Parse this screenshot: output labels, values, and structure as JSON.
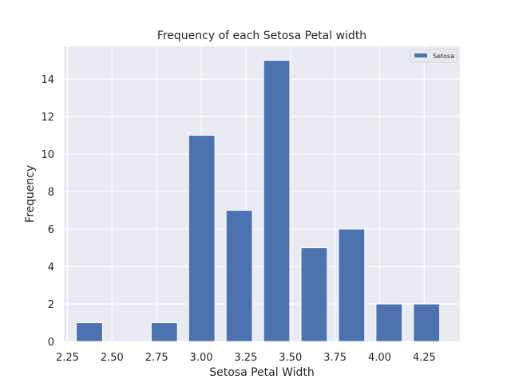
{
  "chart_data": {
    "type": "bar",
    "title": "Frequency of each Setosa Petal width",
    "xlabel": "Setosa Petal Width",
    "ylabel": "Frequency",
    "legend": {
      "entries": [
        "Setosa"
      ],
      "placement": "top-right"
    },
    "grid": true,
    "xlim": [
      2.23,
      4.45
    ],
    "ylim": [
      0,
      15.75
    ],
    "x_ticks": [
      2.25,
      2.5,
      2.75,
      3.0,
      3.25,
      3.5,
      3.75,
      4.0,
      4.25
    ],
    "x_tick_labels": [
      "2.25",
      "2.50",
      "2.75",
      "3.00",
      "3.25",
      "3.50",
      "3.75",
      "4.00",
      "4.25"
    ],
    "y_ticks": [
      0,
      2,
      4,
      6,
      8,
      10,
      12,
      14
    ],
    "y_tick_labels": [
      "0",
      "2",
      "4",
      "6",
      "8",
      "10",
      "12",
      "14"
    ],
    "bar_width": 0.147,
    "series": [
      {
        "name": "Setosa",
        "color": "#4c72b0",
        "bins": [
          {
            "x": 2.373,
            "value": 1
          },
          {
            "x": 2.583,
            "value": 0
          },
          {
            "x": 2.793,
            "value": 1
          },
          {
            "x": 3.003,
            "value": 11
          },
          {
            "x": 3.213,
            "value": 7
          },
          {
            "x": 3.423,
            "value": 15
          },
          {
            "x": 3.633,
            "value": 5
          },
          {
            "x": 3.843,
            "value": 6
          },
          {
            "x": 4.053,
            "value": 2
          },
          {
            "x": 4.263,
            "value": 2
          }
        ]
      }
    ],
    "colors": {
      "background": "#eaeaf2",
      "grid": "#ffffff",
      "bar": "#4c72b0"
    }
  }
}
